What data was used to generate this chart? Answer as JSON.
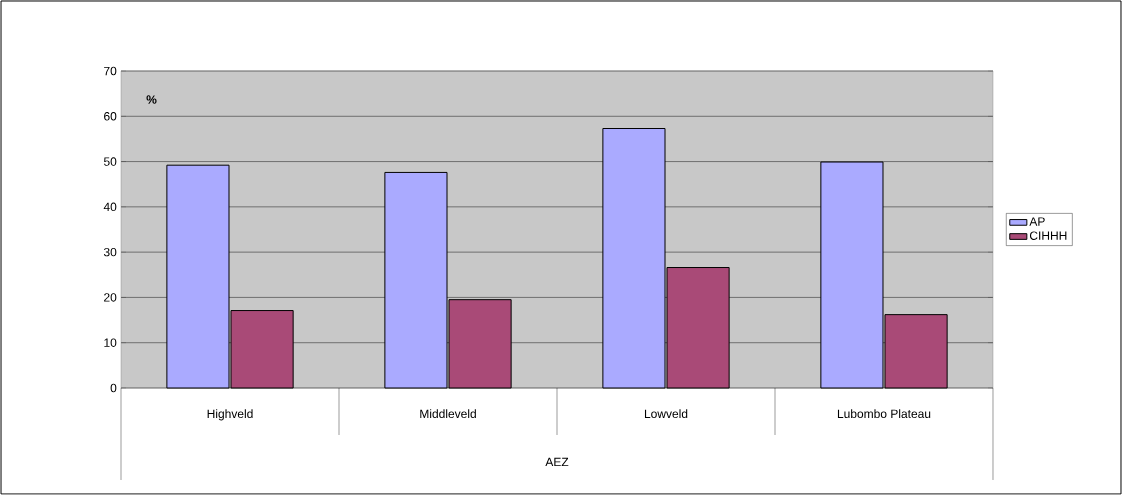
{
  "chart_data": {
    "type": "bar",
    "xlabel": "AEZ",
    "ylabel": "%",
    "categories": [
      "Highveld",
      "Middleveld",
      "Lowveld",
      "Lubombo Plateau"
    ],
    "series": [
      {
        "name": "AP",
        "color": "#aaaaff",
        "values": [
          49.2,
          47.6,
          57.3,
          49.9
        ]
      },
      {
        "name": "CIHHH",
        "color": "#a94a77",
        "values": [
          17.1,
          19.5,
          26.6,
          16.2
        ]
      }
    ],
    "ylim": [
      0,
      70
    ],
    "yticks": [
      0,
      10,
      20,
      30,
      40,
      50,
      60,
      70
    ],
    "grid": "y",
    "legend": "right"
  }
}
